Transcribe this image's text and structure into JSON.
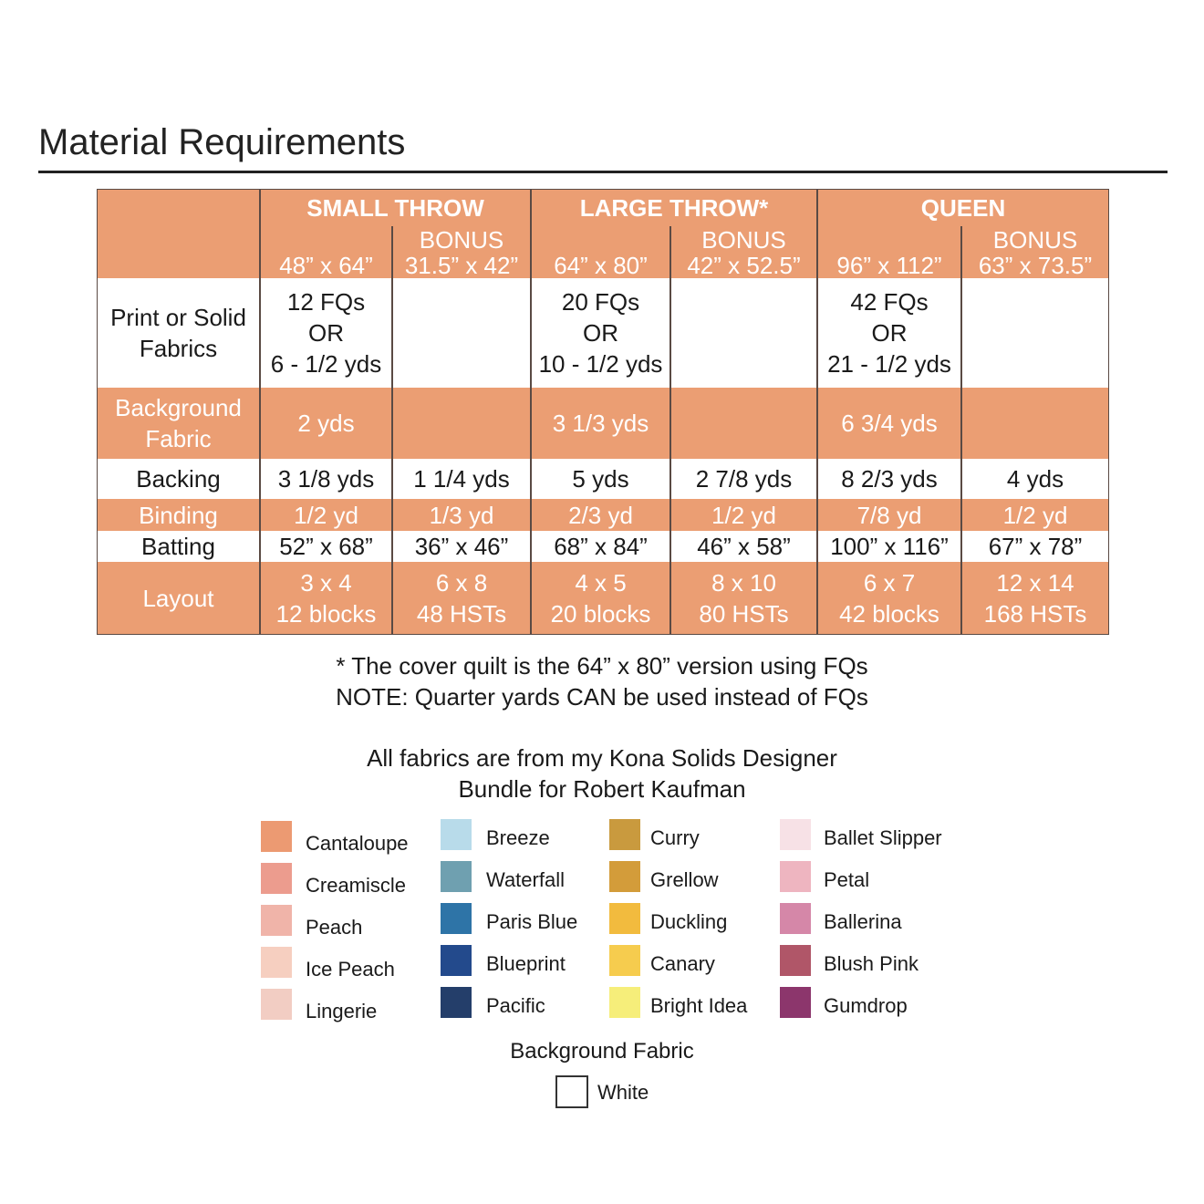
{
  "title": "Material Requirements",
  "table": {
    "header": {
      "groups": [
        {
          "name": "SMALL THROW",
          "sizes": [
            {
              "size": "48” x 64”"
            },
            {
              "label": "BONUS",
              "size": "31.5” x 42”"
            }
          ]
        },
        {
          "name": "LARGE THROW*",
          "sizes": [
            {
              "size": "64” x 80”"
            },
            {
              "label": "BONUS",
              "size": "42” x 52.5”"
            }
          ]
        },
        {
          "name": "QUEEN",
          "sizes": [
            {
              "size": "96” x 112”"
            },
            {
              "label": "BONUS",
              "size": "63” x 73.5”"
            }
          ]
        }
      ]
    },
    "rows": [
      {
        "label": [
          "Print or Solid",
          "Fabrics"
        ],
        "cells": [
          [
            "12 FQs",
            "OR",
            "6 - 1/2 yds"
          ],
          null,
          [
            "20 FQs",
            "OR",
            "10 - 1/2 yds"
          ],
          null,
          [
            "42 FQs",
            "OR",
            "21 - 1/2 yds"
          ],
          null
        ]
      },
      {
        "label": [
          "Background",
          "Fabric"
        ],
        "cells": [
          [
            "2 yds"
          ],
          null,
          [
            "3 1/3 yds"
          ],
          null,
          [
            "6 3/4 yds"
          ],
          null
        ]
      },
      {
        "label": [
          "Backing"
        ],
        "cells": [
          [
            "3 1/8 yds"
          ],
          [
            "1 1/4 yds"
          ],
          [
            "5 yds"
          ],
          [
            "2 7/8 yds"
          ],
          [
            "8 2/3 yds"
          ],
          [
            "4 yds"
          ]
        ]
      },
      {
        "label": [
          "Binding"
        ],
        "cells": [
          [
            "1/2 yd"
          ],
          [
            "1/3 yd"
          ],
          [
            "2/3 yd"
          ],
          [
            "1/2 yd"
          ],
          [
            "7/8 yd"
          ],
          [
            "1/2 yd"
          ]
        ]
      },
      {
        "label": [
          "Batting"
        ],
        "cells": [
          [
            "52” x 68”"
          ],
          [
            "36” x 46”"
          ],
          [
            "68” x 84”"
          ],
          [
            "46” x 58”"
          ],
          [
            "100” x 116”"
          ],
          [
            "67” x 78”"
          ]
        ]
      },
      {
        "label": [
          "Layout"
        ],
        "cells": [
          [
            "3 x 4",
            "12 blocks"
          ],
          [
            "6 x 8",
            "48 HSTs"
          ],
          [
            "4 x 5",
            "20 blocks"
          ],
          [
            "8 x 10",
            "80 HSTs"
          ],
          [
            "6 x 7",
            "42 blocks"
          ],
          [
            "12 x 14",
            "168 HSTs"
          ]
        ]
      }
    ]
  },
  "notes": [
    "* The cover quilt is the 64” x 80” version using FQs",
    "NOTE: Quarter yards CAN be used instead of FQs"
  ],
  "bundle": [
    "All fabrics are from my Kona Solids Designer",
    "Bundle for Robert Kaufman"
  ],
  "fabrics": [
    [
      {
        "name": "Cantaloupe",
        "color": "#ec9a72"
      },
      {
        "name": "Creamiscle",
        "color": "#ec9c8e"
      },
      {
        "name": "Peach",
        "color": "#f0b4a9"
      },
      {
        "name": "Ice Peach",
        "color": "#f6cfc0"
      },
      {
        "name": "Lingerie",
        "color": "#f2cdc3"
      }
    ],
    [
      {
        "name": "Breeze",
        "color": "#b8dbea"
      },
      {
        "name": "Waterfall",
        "color": "#6fa0b0"
      },
      {
        "name": "Paris Blue",
        "color": "#2e74a7"
      },
      {
        "name": "Blueprint",
        "color": "#234a8c"
      },
      {
        "name": "Pacific",
        "color": "#243e6a"
      }
    ],
    [
      {
        "name": "Curry",
        "color": "#c99a3e"
      },
      {
        "name": "Grellow",
        "color": "#d39c3a"
      },
      {
        "name": "Duckling",
        "color": "#f2bb3e"
      },
      {
        "name": "Canary",
        "color": "#f6cc4e"
      },
      {
        "name": "Bright Idea",
        "color": "#f6ee7a"
      }
    ],
    [
      {
        "name": "Ballet Slipper",
        "color": "#f7e1e6"
      },
      {
        "name": "Petal",
        "color": "#eeb5c0"
      },
      {
        "name": "Ballerina",
        "color": "#d587a8"
      },
      {
        "name": "Blush Pink",
        "color": "#b05668"
      },
      {
        "name": "Gumdrop",
        "color": "#8c366c"
      }
    ]
  ],
  "background": {
    "title": "Background Fabric",
    "fabric": {
      "name": "White",
      "color": "#ffffff"
    }
  }
}
